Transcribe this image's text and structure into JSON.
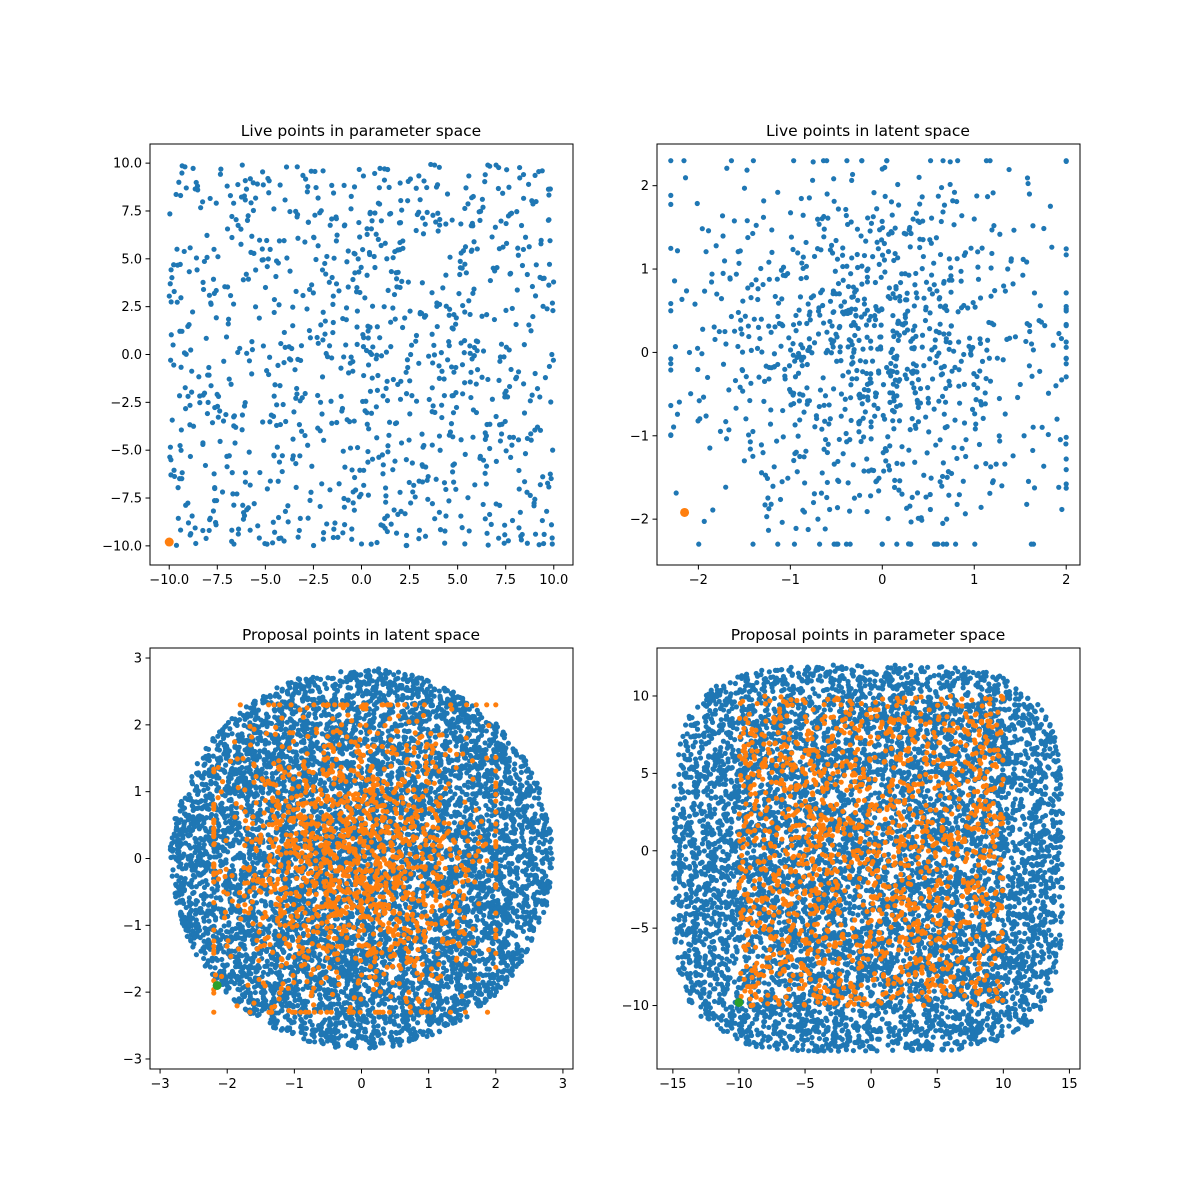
{
  "colors": {
    "blue": "#1f77b4",
    "orange": "#ff7f0e",
    "green": "#2ca02c"
  },
  "chart_data": [
    {
      "type": "scatter",
      "title": "Live points in parameter space",
      "xlim": [
        -11,
        11
      ],
      "ylim": [
        -11,
        11
      ],
      "xticks": [
        -10,
        -7.5,
        -5,
        -2.5,
        0,
        2.5,
        5,
        7.5,
        10
      ],
      "xtick_labels": [
        "−10.0",
        "−7.5",
        "−5.0",
        "−2.5",
        "0.0",
        "2.5",
        "5.0",
        "7.5",
        "10.0"
      ],
      "yticks": [
        -10,
        -7.5,
        -5,
        -2.5,
        0,
        2.5,
        5,
        7.5,
        10
      ],
      "ytick_labels": [
        "−10.0",
        "−7.5",
        "−5.0",
        "−2.5",
        "0.0",
        "2.5",
        "5.0",
        "7.5",
        "10.0"
      ],
      "grid": false,
      "series": [
        {
          "color": "#1f77b4",
          "marker_size": "small",
          "count": 1000,
          "distribution": {
            "shape": "square",
            "x_range": [
              -10,
              10
            ],
            "y_range": [
              -10,
              10
            ]
          },
          "sample": [
            [
              -9.5,
              9.0
            ],
            [
              -6.2,
              9.9
            ],
            [
              -3.9,
              9.8
            ],
            [
              1.2,
              9.7
            ],
            [
              3.8,
              9.9
            ],
            [
              7.0,
              9.9
            ],
            [
              9.4,
              9.6
            ],
            [
              -9.8,
              0.5
            ],
            [
              9.9,
              0.0
            ],
            [
              -9.0,
              -8.8
            ],
            [
              0.0,
              -9.9
            ],
            [
              9.5,
              -9.4
            ]
          ]
        }
      ],
      "highlight": {
        "color": "#ff7f0e",
        "x": -10.0,
        "y": -9.8
      }
    },
    {
      "type": "scatter",
      "title": "Live points in latent space",
      "xlim": [
        -2.45,
        2.15
      ],
      "ylim": [
        -2.55,
        2.5
      ],
      "xticks": [
        -2,
        -1,
        0,
        1,
        2
      ],
      "xtick_labels": [
        "−2",
        "−1",
        "0",
        "1",
        "2"
      ],
      "yticks": [
        -2,
        -1,
        0,
        1,
        2
      ],
      "ytick_labels": [
        "−2",
        "−1",
        "0",
        "1",
        "2"
      ],
      "grid": false,
      "series": [
        {
          "color": "#1f77b4",
          "marker_size": "small",
          "count": 1000,
          "distribution": {
            "shape": "blob",
            "x_range": [
              -2.3,
              2.0
            ],
            "y_range": [
              -2.3,
              2.3
            ]
          },
          "sample": [
            [
              -2.3,
              0.5
            ],
            [
              -1.8,
              0.7
            ],
            [
              -1.2,
              1.2
            ],
            [
              -0.6,
              1.9
            ],
            [
              0.0,
              2.2
            ],
            [
              0.4,
              2.1
            ],
            [
              1.0,
              1.6
            ],
            [
              1.6,
              1.9
            ],
            [
              1.9,
              -0.8
            ],
            [
              1.3,
              -1.6
            ],
            [
              0.7,
              -2.0
            ],
            [
              0.0,
              -2.3
            ],
            [
              -0.7,
              -2.0
            ],
            [
              -1.5,
              -1.3
            ],
            [
              -1.9,
              -0.3
            ]
          ]
        }
      ],
      "highlight": {
        "color": "#ff7f0e",
        "x": -2.15,
        "y": -1.92
      }
    },
    {
      "type": "scatter",
      "title": "Proposal points in latent space",
      "xlim": [
        -3.15,
        3.15
      ],
      "ylim": [
        -3.15,
        3.15
      ],
      "xticks": [
        -3,
        -2,
        -1,
        0,
        1,
        2,
        3
      ],
      "xtick_labels": [
        "−3",
        "−2",
        "−1",
        "0",
        "1",
        "2",
        "3"
      ],
      "yticks": [
        -3,
        -2,
        -1,
        0,
        1,
        2,
        3
      ],
      "ytick_labels": [
        "−3",
        "−2",
        "−1",
        "0",
        "1",
        "2",
        "3"
      ],
      "grid": false,
      "series": [
        {
          "color": "#1f77b4",
          "marker_size": "small",
          "count": 7000,
          "distribution": {
            "shape": "disc",
            "center": [
              0,
              0
            ],
            "radius": 2.85
          }
        },
        {
          "color": "#ff7f0e",
          "marker_size": "small",
          "count": 1500,
          "distribution": {
            "shape": "blob",
            "x_range": [
              -2.2,
              2.0
            ],
            "y_range": [
              -2.3,
              2.3
            ]
          }
        }
      ],
      "highlight": {
        "color": "#2ca02c",
        "x": -2.15,
        "y": -1.9
      }
    },
    {
      "type": "scatter",
      "title": "Proposal points in parameter space",
      "xlim": [
        -16.2,
        15.8
      ],
      "ylim": [
        -14.1,
        13.1
      ],
      "xticks": [
        -15,
        -10,
        -5,
        0,
        5,
        10,
        15
      ],
      "xtick_labels": [
        "−15",
        "−10",
        "−5",
        "0",
        "5",
        "10",
        "15"
      ],
      "yticks": [
        -10,
        -5,
        0,
        5,
        10
      ],
      "ytick_labels": [
        "−10",
        "−5",
        "0",
        "5",
        "10"
      ],
      "grid": false,
      "series": [
        {
          "color": "#1f77b4",
          "marker_size": "small",
          "count": 7000,
          "distribution": {
            "shape": "rounded-square",
            "x_range": [
              -15,
              14.5
            ],
            "y_range": [
              -13,
              12
            ]
          }
        },
        {
          "color": "#ff7f0e",
          "marker_size": "small",
          "count": 1500,
          "distribution": {
            "shape": "square",
            "x_range": [
              -10,
              10
            ],
            "y_range": [
              -10,
              10
            ]
          }
        }
      ],
      "highlight": {
        "color": "#2ca02c",
        "x": -10.0,
        "y": -9.8
      }
    }
  ]
}
